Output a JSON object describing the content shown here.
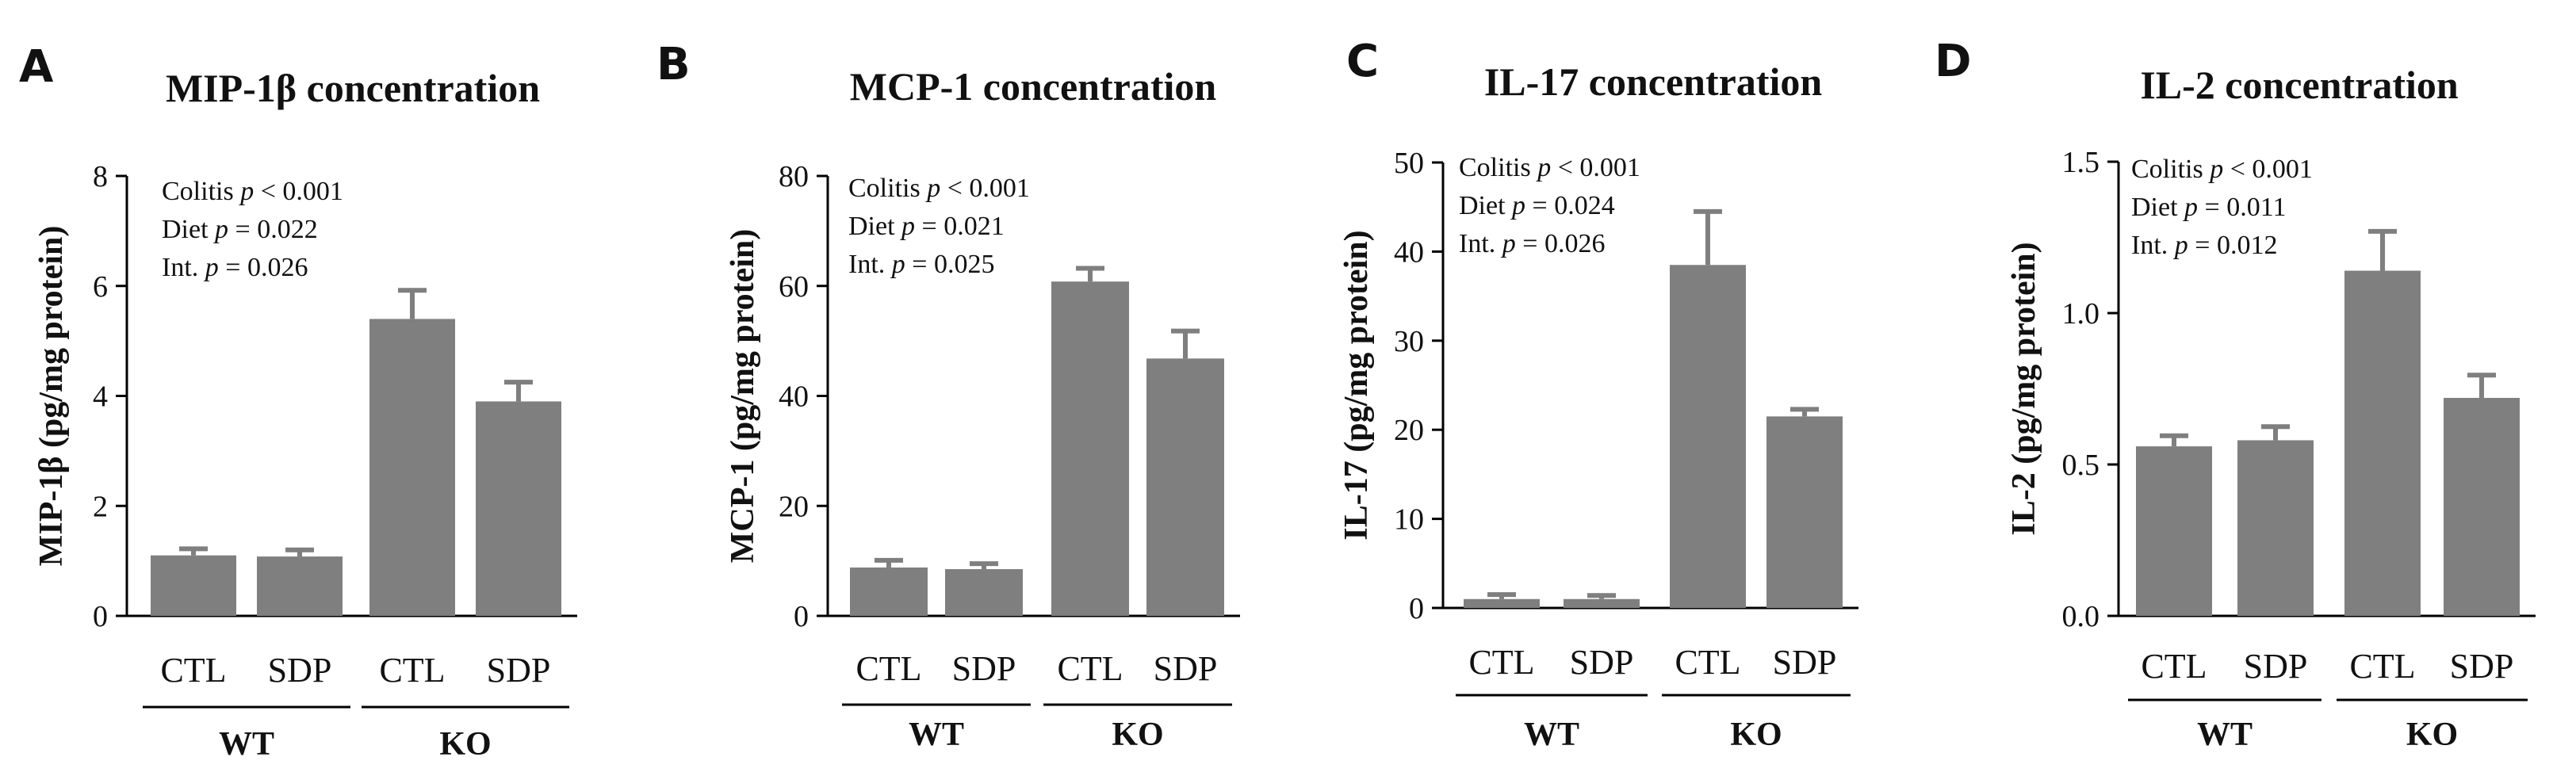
{
  "colors": {
    "bar": "#7f7f7f",
    "axis": "#000000",
    "text": "#111111"
  },
  "chart_data": [
    {
      "type": "bar",
      "panel": "A",
      "title": "MIP-1β concentration",
      "ylabel": "MIP-1β (pg/mg protein)",
      "ylim": [
        0,
        8
      ],
      "ticks": [
        0,
        2,
        4,
        6,
        8
      ],
      "tick_labels": [
        "0",
        "2",
        "4",
        "6",
        "8"
      ],
      "categories": [
        "CTL",
        "SDP",
        "CTL",
        "SDP"
      ],
      "groups": [
        {
          "name": "WT",
          "members": [
            0,
            1
          ]
        },
        {
          "name": "KO",
          "members": [
            2,
            3
          ]
        }
      ],
      "values": [
        1.1,
        1.08,
        5.4,
        3.9
      ],
      "errors": [
        0.12,
        0.12,
        0.52,
        0.35
      ],
      "stats": [
        {
          "label": "Colitis",
          "p": "p",
          "rest": " < 0.001"
        },
        {
          "label": "Diet",
          "p": "p",
          "rest": " = 0.022"
        },
        {
          "label": "Int.",
          "p": "p",
          "rest": " = 0.026"
        }
      ]
    },
    {
      "type": "bar",
      "panel": "B",
      "title": "MCP-1 concentration",
      "ylabel": "MCP-1 (pg/mg protein)",
      "ylim": [
        0,
        80
      ],
      "ticks": [
        0,
        20,
        40,
        60,
        80
      ],
      "tick_labels": [
        "0",
        "20",
        "40",
        "60",
        "80"
      ],
      "categories": [
        "CTL",
        "SDP",
        "CTL",
        "SDP"
      ],
      "groups": [
        {
          "name": "WT",
          "members": [
            0,
            1
          ]
        },
        {
          "name": "KO",
          "members": [
            2,
            3
          ]
        }
      ],
      "values": [
        8.8,
        8.5,
        60.8,
        46.8
      ],
      "errors": [
        1.3,
        1.0,
        2.4,
        5.0
      ],
      "stats": [
        {
          "label": "Colitis",
          "p": "p",
          "rest": " < 0.001"
        },
        {
          "label": "Diet",
          "p": "p",
          "rest": " = 0.021"
        },
        {
          "label": "Int.",
          "p": "p",
          "rest": " = 0.025"
        }
      ]
    },
    {
      "type": "bar",
      "panel": "C",
      "title": "IL-17 concentration",
      "ylabel": "IL-17 (pg/mg protein)",
      "ylim": [
        0,
        50
      ],
      "ticks": [
        0,
        10,
        20,
        30,
        40,
        50
      ],
      "tick_labels": [
        "0",
        "10",
        "20",
        "30",
        "40",
        "50"
      ],
      "categories": [
        "CTL",
        "SDP",
        "CTL",
        "SDP"
      ],
      "groups": [
        {
          "name": "WT",
          "members": [
            0,
            1
          ]
        },
        {
          "name": "KO",
          "members": [
            2,
            3
          ]
        }
      ],
      "values": [
        1.0,
        1.0,
        38.5,
        21.5
      ],
      "errors": [
        0.5,
        0.4,
        6.0,
        0.8
      ],
      "stats": [
        {
          "label": "Colitis",
          "p": "p",
          "rest": " < 0.001"
        },
        {
          "label": "Diet",
          "p": "p",
          "rest": " = 0.024"
        },
        {
          "label": "Int.",
          "p": "p",
          "rest": " = 0.026"
        }
      ]
    },
    {
      "type": "bar",
      "panel": "D",
      "title": "IL-2 concentration",
      "ylabel": "IL-2 (pg/mg protein)",
      "ylim": [
        0,
        1.5
      ],
      "ticks": [
        0,
        0.5,
        1.0,
        1.5
      ],
      "tick_labels": [
        "0.0",
        "0.5",
        "1.0",
        "1.5"
      ],
      "categories": [
        "CTL",
        "SDP",
        "CTL",
        "SDP"
      ],
      "groups": [
        {
          "name": "WT",
          "members": [
            0,
            1
          ]
        },
        {
          "name": "KO",
          "members": [
            2,
            3
          ]
        }
      ],
      "values": [
        0.56,
        0.58,
        1.14,
        0.72
      ],
      "errors": [
        0.035,
        0.045,
        0.13,
        0.075
      ],
      "stats": [
        {
          "label": "Colitis",
          "p": "p",
          "rest": " < 0.001"
        },
        {
          "label": "Diet",
          "p": "p",
          "rest": " = 0.011"
        },
        {
          "label": "Int.",
          "p": "p",
          "rest": " = 0.012"
        }
      ]
    }
  ]
}
